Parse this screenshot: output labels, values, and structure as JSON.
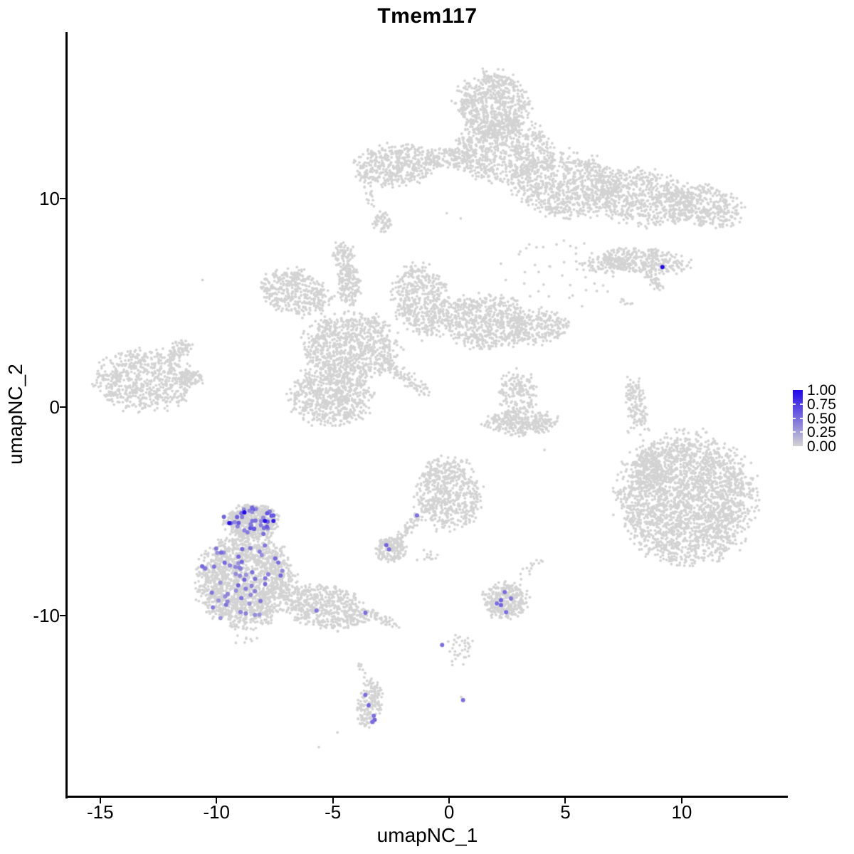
{
  "chart_data": {
    "type": "scatter",
    "title": "Tmem117",
    "xlabel": "umapNC_1",
    "ylabel": "umapNC_2",
    "x_axis": {
      "range": [
        -16.4,
        14.53
      ],
      "ticks": [
        -15,
        -10,
        -5,
        0,
        5,
        10
      ]
    },
    "y_axis": {
      "range": [
        -18.46,
        17.99
      ],
      "ticks": [
        -10,
        0,
        10
      ]
    },
    "grid": false,
    "legend_position": "right",
    "point_color_low": "#D3D3D3",
    "point_color_high": "#2107EB",
    "background_point_radius": 1.9,
    "expression_point_radius": 3.0,
    "blob_format": "[center_x, center_y, radius_x, radius_y, n_points, rotation_deg]",
    "background_clusters": [
      [
        1.85,
        14.5,
        1.5,
        1.55,
        650,
        0
      ],
      [
        2.3,
        12.35,
        2.05,
        1.5,
        700,
        0
      ],
      [
        5.0,
        10.7,
        2.3,
        1.5,
        800,
        -8
      ],
      [
        8.4,
        10.0,
        2.2,
        1.3,
        650,
        -10
      ],
      [
        11.1,
        9.65,
        1.5,
        0.95,
        300,
        -15
      ],
      [
        -2.3,
        11.6,
        1.7,
        0.95,
        450,
        5
      ],
      [
        -0.1,
        11.95,
        0.95,
        0.5,
        110,
        0
      ],
      [
        -2.85,
        8.85,
        0.4,
        0.5,
        55,
        0
      ],
      [
        -4.55,
        7.35,
        0.45,
        0.6,
        70,
        0
      ],
      [
        4.6,
        6.4,
        2.3,
        1.6,
        45,
        0
      ],
      [
        8.3,
        7.0,
        2.0,
        0.58,
        330,
        -5
      ],
      [
        6.7,
        6.85,
        0.95,
        0.4,
        80,
        0
      ],
      [
        7.65,
        5.05,
        0.3,
        0.2,
        6,
        0
      ],
      [
        -13.1,
        1.3,
        2.0,
        1.4,
        650,
        0
      ],
      [
        -11.6,
        2.75,
        0.55,
        0.4,
        70,
        35
      ],
      [
        -11.15,
        1.4,
        0.62,
        0.35,
        70,
        0
      ],
      [
        -6.6,
        5.5,
        1.5,
        1.05,
        400,
        -20
      ],
      [
        -4.3,
        5.9,
        0.5,
        1.05,
        140,
        0
      ],
      [
        -4.2,
        2.9,
        1.95,
        1.55,
        800,
        0
      ],
      [
        -1.15,
        5.1,
        1.15,
        1.7,
        500,
        15
      ],
      [
        1.6,
        4.1,
        1.8,
        1.25,
        600,
        0
      ],
      [
        3.9,
        3.85,
        1.2,
        0.8,
        220,
        0
      ],
      [
        -5.1,
        0.55,
        1.75,
        1.35,
        650,
        0
      ],
      [
        2.7,
        1.1,
        0.5,
        0.7,
        25,
        0
      ],
      [
        3.0,
        0.7,
        0.8,
        0.95,
        130,
        0
      ],
      [
        3.1,
        -0.72,
        1.5,
        0.6,
        300,
        0
      ],
      [
        8.05,
        0.2,
        0.42,
        1.25,
        120,
        8
      ],
      [
        10.2,
        -4.4,
        2.8,
        2.95,
        2400,
        0
      ],
      [
        8.55,
        -2.9,
        0.7,
        0.9,
        140,
        0
      ],
      [
        8.2,
        -1.6,
        0.7,
        1.3,
        22,
        0
      ],
      [
        -8.5,
        -5.5,
        1.15,
        0.8,
        500,
        0
      ],
      [
        -8.75,
        -8.3,
        2.0,
        2.1,
        1700,
        0
      ],
      [
        -5.3,
        -9.6,
        1.85,
        1.0,
        550,
        -12
      ],
      [
        -8.8,
        -11.15,
        0.5,
        0.3,
        8,
        0
      ],
      [
        -0.05,
        -4.15,
        1.35,
        1.65,
        600,
        0
      ],
      [
        -2.5,
        -6.85,
        0.62,
        0.55,
        150,
        0
      ],
      [
        -1.1,
        -7.1,
        0.55,
        0.3,
        12,
        0
      ],
      [
        2.4,
        -9.25,
        0.95,
        0.85,
        300,
        0
      ],
      [
        -3.4,
        -14.2,
        0.5,
        1.1,
        170,
        -8
      ],
      [
        0.45,
        -11.6,
        0.55,
        0.75,
        35,
        0
      ]
    ],
    "line_format": "[x1, y1, x2, y2, n_points, jitter]",
    "background_trails": [
      [
        -3.35,
        9.6,
        -3.55,
        11.0,
        20,
        0.15
      ],
      [
        -4.4,
        6.9,
        -3.95,
        5.45,
        30,
        0.2
      ],
      [
        8.5,
        6.3,
        9.1,
        5.72,
        40,
        0.22
      ],
      [
        -2.9,
        2.3,
        -0.9,
        0.65,
        90,
        0.28
      ],
      [
        -3.5,
        -9.9,
        -2.3,
        -10.45,
        45,
        0.25
      ],
      [
        -1.3,
        -5.2,
        -2.2,
        -6.4,
        55,
        0.18
      ],
      [
        2.9,
        -8.3,
        3.9,
        -7.45,
        14,
        0.2
      ],
      [
        -3.9,
        -12.3,
        -3.6,
        -13.1,
        8,
        0.15
      ]
    ],
    "background_singles": [
      [
        -10.6,
        6.1
      ],
      [
        7.5,
        5.1
      ],
      [
        7.8,
        4.95
      ],
      [
        -4.8,
        -15.6
      ],
      [
        -5.6,
        -16.3
      ],
      [
        0.52,
        -13.9
      ],
      [
        4.1,
        -2.05
      ],
      [
        -0.1,
        9.3
      ],
      [
        0.5,
        9.05
      ]
    ],
    "expression_group_format": "[center_x, center_y, radius_x, radius_y, n_points, value_min, value_max]",
    "expression_groups": [
      [
        -8.5,
        -5.45,
        1.1,
        0.72,
        36,
        0.35,
        0.65
      ],
      [
        -8.7,
        -7.6,
        1.75,
        1.15,
        36,
        0.3,
        0.55
      ],
      [
        -8.8,
        -9.3,
        1.75,
        0.95,
        20,
        0.3,
        0.5
      ]
    ],
    "expression_single_format": "[x, y, expression_value]",
    "expression_singles": [
      [
        9.17,
        6.72,
        1.0
      ],
      [
        -9.45,
        -5.56,
        0.95
      ],
      [
        -8.8,
        -5.05,
        1.0
      ],
      [
        -7.92,
        -5.46,
        0.95
      ],
      [
        -7.55,
        -5.46,
        0.9
      ],
      [
        -5.7,
        -9.76,
        0.45
      ],
      [
        -3.6,
        -9.86,
        0.5
      ],
      [
        -1.38,
        -5.19,
        0.5
      ],
      [
        -2.7,
        -6.62,
        0.55
      ],
      [
        -2.58,
        -6.82,
        0.5
      ],
      [
        2.39,
        -8.87,
        0.5
      ],
      [
        2.23,
        -9.25,
        0.55
      ],
      [
        2.66,
        -9.18,
        0.45
      ],
      [
        2.05,
        -9.42,
        0.5
      ],
      [
        2.23,
        -9.49,
        0.55
      ],
      [
        2.45,
        -9.83,
        0.5
      ],
      [
        -3.6,
        -13.8,
        0.5
      ],
      [
        -3.46,
        -14.3,
        0.55
      ],
      [
        -3.24,
        -14.8,
        0.5
      ],
      [
        -3.2,
        -15.0,
        0.55
      ],
      [
        -3.3,
        -15.1,
        0.5
      ],
      [
        0.6,
        -14.05,
        0.5
      ],
      [
        -0.3,
        -11.4,
        0.5
      ]
    ],
    "legend": {
      "labels": [
        "1.00",
        "0.75",
        "0.50",
        "0.25",
        "0.00"
      ],
      "values": [
        1.0,
        0.75,
        0.5,
        0.25,
        0.0
      ]
    }
  }
}
